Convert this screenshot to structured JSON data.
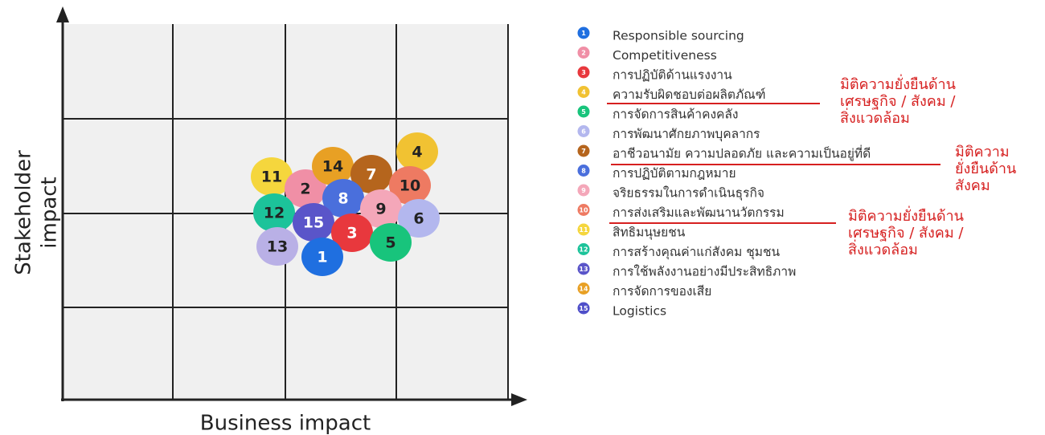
{
  "axes": {
    "x_label": "Business impact",
    "y_label": [
      "Stakeholder",
      "impact"
    ]
  },
  "nodes": [
    {
      "label": "11"
    },
    {
      "label": "2"
    },
    {
      "label": "14"
    },
    {
      "label": "7"
    },
    {
      "label": "4"
    },
    {
      "label": "10"
    },
    {
      "label": "8"
    },
    {
      "label": "9"
    },
    {
      "label": "6"
    },
    {
      "label": "12"
    },
    {
      "label": "15"
    },
    {
      "label": "3"
    },
    {
      "label": "5"
    },
    {
      "label": "13"
    },
    {
      "label": "1"
    }
  ],
  "legend": [
    {
      "number": "1",
      "text": "Responsible sourcing"
    },
    {
      "number": "2",
      "text": "Competitiveness"
    },
    {
      "number": "3",
      "text": "การปฏิบัติด้านแรงงาน"
    },
    {
      "number": "4",
      "text": "ความรับผิดชอบต่อผลิตภัณฑ์"
    },
    {
      "number": "5",
      "text": "การจัดการสินค้าคงคลัง"
    },
    {
      "number": "6",
      "text": "การพัฒนาศักยภาพบุคลากร"
    },
    {
      "number": "7",
      "text": "อาชีวอนามัย ความปลอดภัย และความเป็นอยู่ที่ดี"
    },
    {
      "number": "8",
      "text": "การปฏิบัติตามกฎหมาย"
    },
    {
      "number": "9",
      "text": "จริยธรรมในการดำเนินธุรกิจ"
    },
    {
      "number": "10",
      "text": "การส่งเสริมและพัฒนานวัตกรรม"
    },
    {
      "number": "11",
      "text": "สิทธิมนุษยชน"
    },
    {
      "number": "12",
      "text": "การสร้างคุณค่าแก่สังคม ชุมชน"
    },
    {
      "number": "13",
      "text": "การใช้พลังงานอย่างมีประสิทธิภาพ"
    },
    {
      "number": "14",
      "text": "การจัดการของเสีย"
    },
    {
      "number": "15",
      "text": "Logistics"
    }
  ],
  "annotations": [
    {
      "lines": [
        "มิติความยั่งยืนด้าน",
        "เศรษฐกิจ / สังคม /",
        "สิ่งแวดล้อม"
      ]
    },
    {
      "lines": [
        "มิติความ",
        "ยั่งยืนด้าน",
        "สังคม"
      ]
    },
    {
      "lines": [
        "มิติความยั่งยืนด้าน",
        "เศรษฐกิจ / สังคม /",
        "สิ่งแวดล้อม"
      ]
    }
  ]
}
